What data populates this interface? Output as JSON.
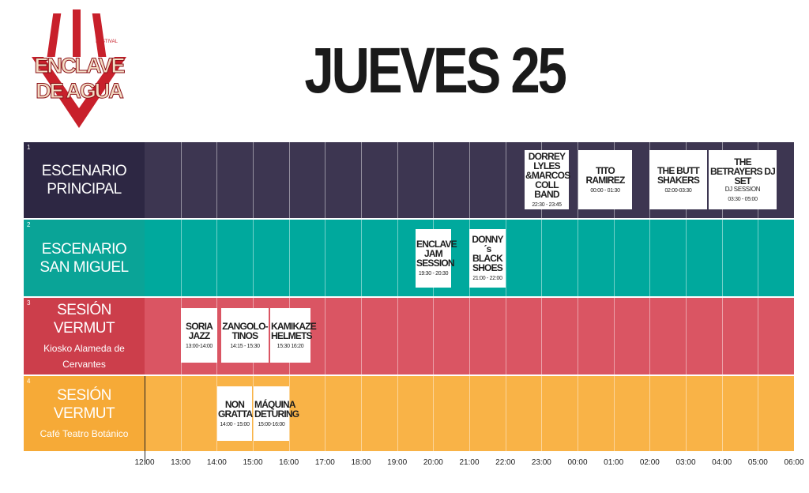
{
  "logo": {
    "small": "FESTIVAL",
    "line1": "ENCLAVE",
    "line2": "DE AGUA"
  },
  "title": "JUEVES 25",
  "stages": [
    {
      "number": "1",
      "name": "ESCENARIO PRINCIPAL",
      "events": [
        {
          "name": "DORREY LYLES &MARCOS COLL BAND",
          "time": "22:30 - 23:45"
        },
        {
          "name": "TITO RAMIREZ",
          "time": "00:00 - 01:30"
        },
        {
          "name": "THE BUTT SHAKERS",
          "time": "02:00-03:30"
        },
        {
          "name": "THE BETRAYERS DJ SET",
          "extra": "DJ SESSION",
          "time": "03:30 - 05:00"
        }
      ]
    },
    {
      "number": "2",
      "name": "ESCENARIO SAN MIGUEL",
      "events": [
        {
          "name": "ENCLAVE JAM SESSION",
          "time": "19:30 - 20:30"
        },
        {
          "name": "DONNY´s BLACK SHOES",
          "time": "21:00 - 22:00"
        }
      ]
    },
    {
      "number": "3",
      "name": "SESIÓN VERMUT",
      "subtitle": "Kiosko Alameda de Cervantes",
      "events": [
        {
          "name": "SORIA JAZZ",
          "time": "13:00-14:00"
        },
        {
          "name": "ZANGOLO-TINOS",
          "time": "14:15 - 15:30"
        },
        {
          "name": "KAMIKAZE HELMETS",
          "time": "15:30 16:20"
        }
      ]
    },
    {
      "number": "4",
      "name": "SESIÓN VERMUT",
      "subtitle": "Café Teatro Botánico",
      "events": [
        {
          "name": "NON GRATTA",
          "time": "14:00 - 15:00"
        },
        {
          "name": "MÁQUINA DETURING",
          "time": "15:00-16:00"
        }
      ]
    }
  ],
  "time_axis": [
    "12:00",
    "13:00",
    "14:00",
    "15:00",
    "16:00",
    "17:00",
    "18:00",
    "19:00",
    "20:00",
    "21:00",
    "22:00",
    "23:00",
    "00:00",
    "01:00",
    "02:00",
    "03:00",
    "04:00",
    "05:00",
    "06:00"
  ]
}
